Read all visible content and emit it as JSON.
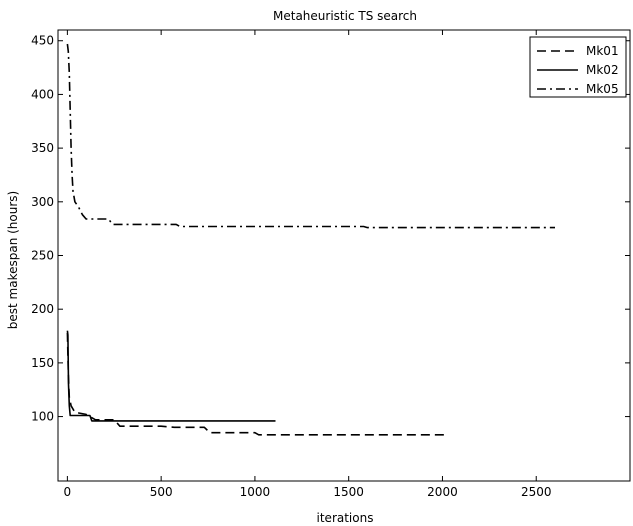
{
  "chart_data": {
    "type": "line",
    "title": "Metaheuristic TS search",
    "xlabel": "iterations",
    "ylabel": "best makespan (hours)",
    "xlim": [
      -50,
      3000
    ],
    "ylim": [
      40,
      460
    ],
    "xticks": [
      0,
      500,
      1000,
      1500,
      2000,
      2500
    ],
    "yticks": [
      100,
      150,
      200,
      250,
      300,
      350,
      400,
      450
    ],
    "grid": false,
    "legend_position": "top-right",
    "series": [
      {
        "name": "Mk01",
        "style": "dashed",
        "color": "#000000",
        "points": [
          [
            0,
            178
          ],
          [
            5,
            140
          ],
          [
            10,
            118
          ],
          [
            20,
            110
          ],
          [
            40,
            104
          ],
          [
            100,
            102
          ],
          [
            150,
            97
          ],
          [
            250,
            97
          ],
          [
            280,
            91
          ],
          [
            500,
            91
          ],
          [
            570,
            90
          ],
          [
            730,
            90
          ],
          [
            760,
            85
          ],
          [
            1000,
            85
          ],
          [
            1020,
            83
          ],
          [
            2030,
            83
          ]
        ]
      },
      {
        "name": "Mk02",
        "style": "solid",
        "color": "#000000",
        "points": [
          [
            0,
            180
          ],
          [
            3,
            176
          ],
          [
            6,
            130
          ],
          [
            10,
            110
          ],
          [
            15,
            101
          ],
          [
            120,
            101
          ],
          [
            130,
            96
          ],
          [
            1110,
            96
          ]
        ]
      },
      {
        "name": "Mk05",
        "style": "dashdot",
        "color": "#000000",
        "points": [
          [
            0,
            447
          ],
          [
            5,
            440
          ],
          [
            10,
            420
          ],
          [
            15,
            385
          ],
          [
            20,
            350
          ],
          [
            25,
            325
          ],
          [
            30,
            310
          ],
          [
            40,
            300
          ],
          [
            60,
            295
          ],
          [
            80,
            288
          ],
          [
            100,
            284
          ],
          [
            220,
            284
          ],
          [
            240,
            279
          ],
          [
            580,
            279
          ],
          [
            600,
            277
          ],
          [
            1580,
            277
          ],
          [
            1600,
            276
          ],
          [
            2600,
            276
          ]
        ]
      }
    ]
  }
}
